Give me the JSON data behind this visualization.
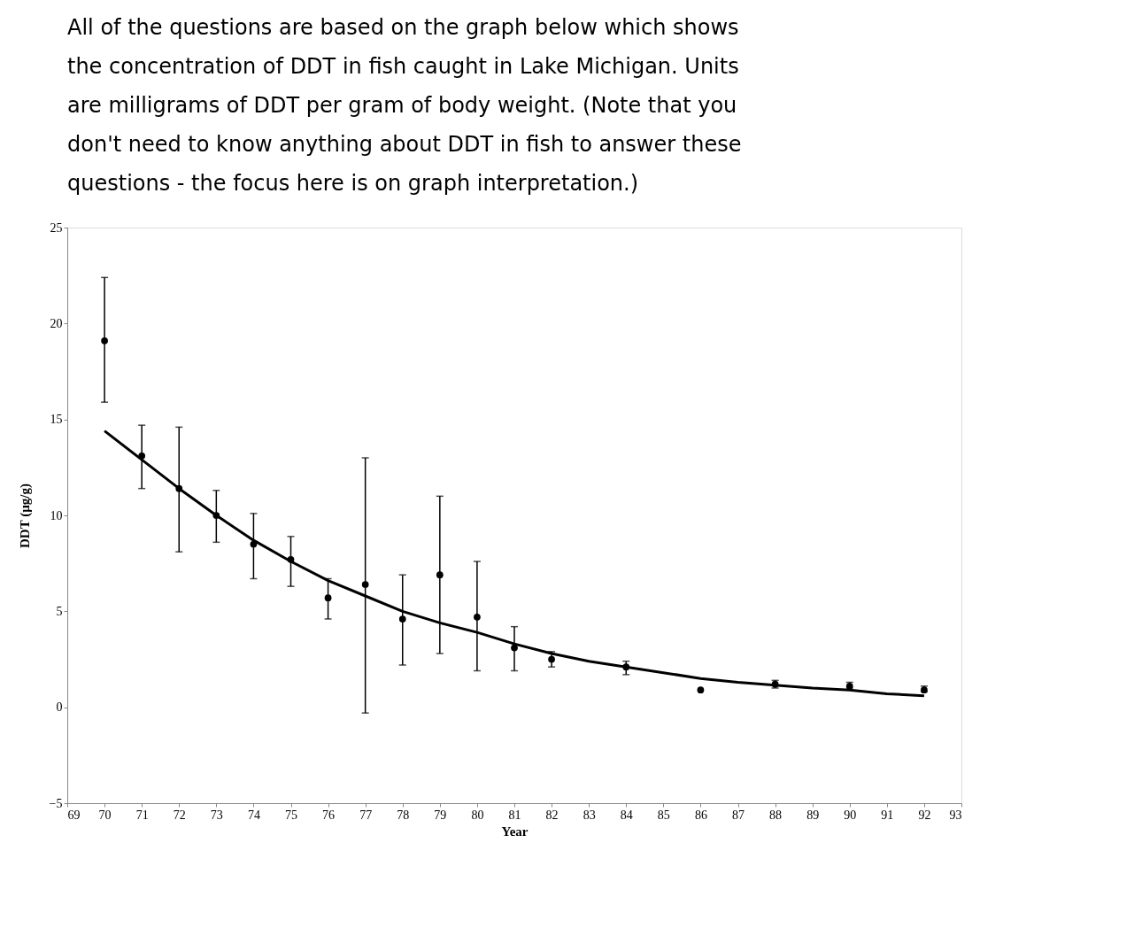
{
  "chart_data": {
    "type": "scatter",
    "title": "All of the questions are based on the graph below which shows the concentration of DDT in fish caught in Lake Michigan.  Units are milligrams of DDT per gram of body weight.  (Note that you don't need to know anything about DDT in fish to answer these questions - the focus here is on graph interpretation.)",
    "xlabel": "Year",
    "ylabel": "DDT (µg/g)",
    "xlim": [
      69,
      93
    ],
    "xticks": [
      69,
      70,
      71,
      72,
      73,
      74,
      75,
      76,
      77,
      78,
      79,
      80,
      81,
      82,
      83,
      84,
      85,
      86,
      87,
      88,
      89,
      90,
      91,
      92,
      93
    ],
    "ylim": [
      -5,
      25
    ],
    "yticks": [
      -5,
      0,
      5,
      10,
      15,
      20,
      25
    ],
    "grid": false,
    "legend": false,
    "series": [
      {
        "type": "scatter",
        "color": "#000000",
        "marker": "circle",
        "x": [
          70,
          71,
          72,
          73,
          74,
          75,
          76,
          77,
          78,
          79,
          80,
          81,
          82,
          84,
          86,
          88,
          90,
          92
        ],
        "values": [
          19.1,
          13.1,
          11.4,
          10.0,
          8.5,
          7.7,
          5.7,
          6.4,
          4.6,
          6.9,
          4.7,
          3.1,
          2.5,
          2.1,
          0.9,
          1.2,
          1.1,
          0.9
        ],
        "errors": [
          [
            15.9,
            22.4
          ],
          [
            11.4,
            14.7
          ],
          [
            8.1,
            14.6
          ],
          [
            8.6,
            11.3
          ],
          [
            6.7,
            10.1
          ],
          [
            6.3,
            8.9
          ],
          [
            4.6,
            6.7
          ],
          [
            -0.3,
            13.0
          ],
          [
            2.2,
            6.9
          ],
          [
            2.8,
            11.0
          ],
          [
            1.9,
            7.6
          ],
          [
            1.9,
            4.2
          ],
          [
            2.1,
            2.9
          ],
          [
            1.7,
            2.4
          ],
          null,
          [
            1.0,
            1.4
          ],
          [
            1.0,
            1.3
          ],
          [
            0.8,
            1.1
          ]
        ]
      },
      {
        "type": "line",
        "color": "#000000",
        "line_style": "solid",
        "marker": "none",
        "x": [
          70,
          71,
          72,
          73,
          74,
          75,
          76,
          77,
          78,
          79,
          80,
          81,
          82,
          83,
          84,
          85,
          86,
          87,
          88,
          89,
          90,
          91,
          92
        ],
        "values": [
          14.4,
          12.9,
          11.4,
          10.0,
          8.7,
          7.6,
          6.6,
          5.8,
          5.0,
          4.4,
          3.9,
          3.3,
          2.8,
          2.4,
          2.1,
          1.8,
          1.5,
          1.3,
          1.15,
          1.0,
          0.9,
          0.7,
          0.6
        ]
      }
    ]
  }
}
